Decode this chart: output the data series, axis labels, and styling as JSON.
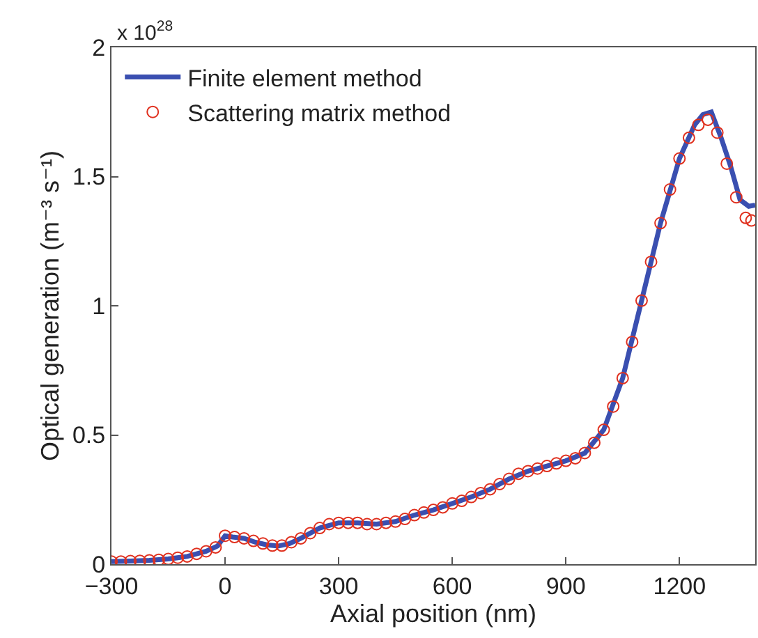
{
  "chart_data": {
    "type": "line",
    "xlabel": "Axial position (nm)",
    "ylabel": "Optical generation (m⁻³ s⁻¹)",
    "annotations": [
      "x 10$^{28}$"
    ],
    "xlim": [
      -300,
      1400
    ],
    "xticks": [
      {
        "value": -300,
        "label": "−300"
      },
      0,
      300,
      600,
      900,
      1200
    ],
    "ylim": [
      0,
      2
    ],
    "yticks": [
      0,
      0.5,
      1,
      1.5,
      2
    ],
    "grid": false,
    "legend": "top left",
    "series": [
      {
        "name": "Finite element method",
        "color": "#3a4fb0",
        "line_style": "solid",
        "marker": "none",
        "x": [
          -300,
          -250,
          -200,
          -150,
          -100,
          -50,
          -20,
          0,
          20,
          50,
          80,
          110,
          140,
          170,
          200,
          250,
          300,
          350,
          400,
          450,
          500,
          550,
          600,
          650,
          700,
          750,
          800,
          850,
          900,
          950,
          1000,
          1050,
          1100,
          1150,
          1200,
          1240,
          1262,
          1284,
          1310,
          1335,
          1360,
          1383,
          1400
        ],
        "values": [
          0.01,
          0.012,
          0.015,
          0.02,
          0.03,
          0.05,
          0.07,
          0.11,
          0.105,
          0.1,
          0.085,
          0.075,
          0.07,
          0.08,
          0.1,
          0.14,
          0.16,
          0.16,
          0.155,
          0.165,
          0.19,
          0.21,
          0.235,
          0.26,
          0.29,
          0.33,
          0.36,
          0.38,
          0.4,
          0.43,
          0.52,
          0.72,
          1.02,
          1.32,
          1.57,
          1.7,
          1.74,
          1.75,
          1.65,
          1.54,
          1.41,
          1.385,
          1.39
        ]
      },
      {
        "name": "Scattering matrix method",
        "type": "scatter",
        "color": "#e0301e",
        "marker": "circle",
        "x": [
          -300,
          -275,
          -250,
          -225,
          -200,
          -175,
          -150,
          -125,
          -100,
          -75,
          -50,
          -25,
          0,
          25,
          50,
          75,
          100,
          125,
          150,
          175,
          200,
          225,
          250,
          275,
          300,
          325,
          350,
          375,
          400,
          425,
          450,
          475,
          500,
          525,
          550,
          575,
          600,
          625,
          650,
          675,
          700,
          725,
          750,
          775,
          800,
          825,
          850,
          875,
          900,
          925,
          950,
          975,
          1000,
          1025,
          1050,
          1075,
          1100,
          1125,
          1150,
          1175,
          1200,
          1225,
          1250,
          1275,
          1300,
          1325,
          1350,
          1375,
          1390
        ],
        "values": [
          0.01,
          0.01,
          0.012,
          0.013,
          0.015,
          0.017,
          0.02,
          0.025,
          0.03,
          0.04,
          0.05,
          0.065,
          0.11,
          0.105,
          0.1,
          0.09,
          0.08,
          0.072,
          0.072,
          0.085,
          0.1,
          0.12,
          0.14,
          0.155,
          0.16,
          0.16,
          0.16,
          0.155,
          0.155,
          0.16,
          0.165,
          0.175,
          0.19,
          0.2,
          0.21,
          0.22,
          0.235,
          0.245,
          0.26,
          0.275,
          0.29,
          0.31,
          0.33,
          0.35,
          0.36,
          0.37,
          0.38,
          0.39,
          0.4,
          0.41,
          0.43,
          0.47,
          0.52,
          0.61,
          0.72,
          0.86,
          1.02,
          1.17,
          1.32,
          1.45,
          1.57,
          1.65,
          1.7,
          1.72,
          1.67,
          1.55,
          1.42,
          1.34,
          1.33
        ]
      }
    ]
  }
}
